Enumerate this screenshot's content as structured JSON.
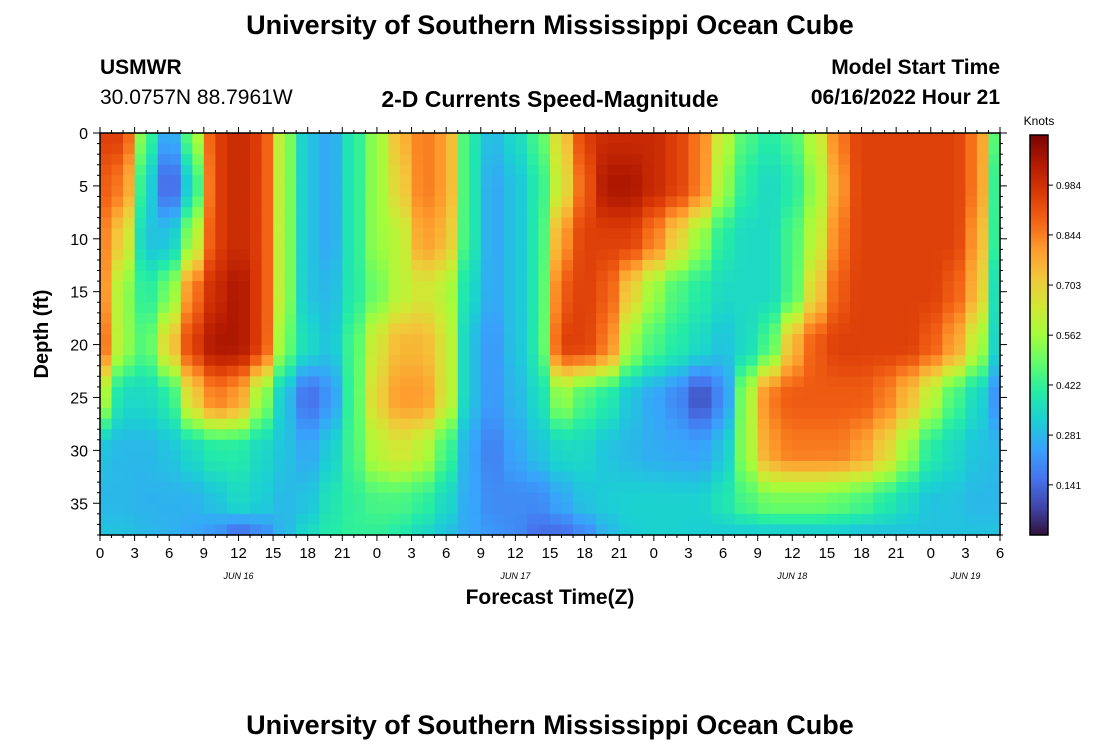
{
  "header": {
    "title": "University of Southern Mississippi Ocean Cube",
    "station": "USMWR",
    "coords": "30.0757N  88.7961W",
    "subtitle": "2-D Currents Speed-Magnitude",
    "start_label": "Model Start Time",
    "start_value": "06/16/2022 Hour 21"
  },
  "footer": {
    "title": "University of Southern Mississippi Ocean Cube"
  },
  "colors": {
    "scale": [
      "#30123b",
      "#4145ab",
      "#4675ed",
      "#39a2fc",
      "#1bcfd4",
      "#24eca6",
      "#61fc6c",
      "#a4fc3b",
      "#d1e834",
      "#f3c63a",
      "#fe9b2d",
      "#f36315",
      "#d93806",
      "#b11901",
      "#7a0403"
    ]
  },
  "chart_data": {
    "type": "heatmap",
    "title": "2-D Currents Speed-Magnitude",
    "xlabel": "Forecast Time(Z)",
    "ylabel": "Depth (ft)",
    "x_ticks": [
      "0",
      "3",
      "6",
      "9",
      "12",
      "15",
      "18",
      "21",
      "0",
      "3",
      "6",
      "9",
      "12",
      "15",
      "18",
      "21",
      "0",
      "3",
      "6",
      "9",
      "12",
      "15",
      "18",
      "21",
      "0",
      "3",
      "6"
    ],
    "x_range_hours": [
      0,
      78
    ],
    "day_labels": [
      {
        "label": "JUN 16",
        "hour": 12
      },
      {
        "label": "JUN 17",
        "hour": 36
      },
      {
        "label": "JUN 18",
        "hour": 60
      },
      {
        "label": "JUN 19",
        "hour": 75
      }
    ],
    "y_ticks": [
      0,
      5,
      10,
      15,
      20,
      25,
      30,
      35
    ],
    "y_range_ft": [
      0,
      38
    ],
    "colorbar": {
      "label": "Knots",
      "ticks": [
        "0.984",
        "0.844",
        "0.703",
        "0.562",
        "0.422",
        "0.281",
        "0.141"
      ],
      "tick_values": [
        0.984,
        0.844,
        0.703,
        0.562,
        0.422,
        0.281,
        0.141
      ],
      "range": [
        0.0,
        1.125
      ]
    },
    "grid_hours": [
      0,
      2,
      4,
      6,
      8,
      10,
      12,
      14,
      16,
      18,
      20,
      22,
      24,
      26,
      28,
      30,
      32,
      34,
      36,
      38,
      40,
      42,
      44,
      46,
      48,
      50,
      52,
      54,
      56,
      58,
      60,
      62,
      64,
      66,
      68,
      70,
      72,
      74,
      76,
      78
    ],
    "grid_depths_ft": [
      0,
      5,
      10,
      15,
      20,
      25,
      30,
      35,
      38
    ],
    "values_knots": [
      [
        0.95,
        0.95,
        0.45,
        0.22,
        0.5,
        0.95,
        1.0,
        0.95,
        0.55,
        0.3,
        0.25,
        0.4,
        0.55,
        0.75,
        0.85,
        0.8,
        0.4,
        0.28,
        0.35,
        0.45,
        0.7,
        0.95,
        1.0,
        1.0,
        1.0,
        0.95,
        0.85,
        0.6,
        0.45,
        0.4,
        0.45,
        0.6,
        0.85,
        0.95,
        0.95,
        0.95,
        0.95,
        0.95,
        0.85,
        0.4
      ],
      [
        0.9,
        0.85,
        0.35,
        0.12,
        0.35,
        0.95,
        1.0,
        0.95,
        0.55,
        0.3,
        0.25,
        0.4,
        0.55,
        0.7,
        0.85,
        0.8,
        0.4,
        0.25,
        0.3,
        0.4,
        0.65,
        0.9,
        1.05,
        1.05,
        1.0,
        0.95,
        0.85,
        0.55,
        0.4,
        0.35,
        0.4,
        0.55,
        0.8,
        0.95,
        0.95,
        0.95,
        0.95,
        0.95,
        0.85,
        0.35
      ],
      [
        0.85,
        0.7,
        0.3,
        0.3,
        0.55,
        0.95,
        1.0,
        0.95,
        0.55,
        0.3,
        0.25,
        0.4,
        0.55,
        0.6,
        0.8,
        0.75,
        0.4,
        0.25,
        0.3,
        0.4,
        0.8,
        0.95,
        0.95,
        0.95,
        0.85,
        0.7,
        0.55,
        0.4,
        0.35,
        0.35,
        0.45,
        0.6,
        0.85,
        0.95,
        0.95,
        0.95,
        0.95,
        0.95,
        0.8,
        0.35
      ],
      [
        0.85,
        0.55,
        0.4,
        0.5,
        0.85,
        1.0,
        1.05,
        0.95,
        0.55,
        0.3,
        0.28,
        0.4,
        0.5,
        0.6,
        0.65,
        0.6,
        0.35,
        0.25,
        0.3,
        0.4,
        0.9,
        0.95,
        0.9,
        0.7,
        0.55,
        0.45,
        0.4,
        0.35,
        0.35,
        0.35,
        0.45,
        0.7,
        0.9,
        0.95,
        0.95,
        0.95,
        0.95,
        0.9,
        0.75,
        0.3
      ],
      [
        0.9,
        0.55,
        0.45,
        0.7,
        0.95,
        1.05,
        1.05,
        0.95,
        0.5,
        0.35,
        0.3,
        0.45,
        0.65,
        0.75,
        0.75,
        0.65,
        0.3,
        0.22,
        0.3,
        0.4,
        0.95,
        0.95,
        0.85,
        0.55,
        0.45,
        0.4,
        0.35,
        0.3,
        0.35,
        0.45,
        0.75,
        0.9,
        0.95,
        0.95,
        0.95,
        0.95,
        0.9,
        0.8,
        0.6,
        0.3
      ],
      [
        0.6,
        0.35,
        0.35,
        0.4,
        0.7,
        0.85,
        0.8,
        0.55,
        0.3,
        0.15,
        0.22,
        0.45,
        0.7,
        0.8,
        0.8,
        0.65,
        0.3,
        0.22,
        0.28,
        0.35,
        0.55,
        0.45,
        0.4,
        0.3,
        0.25,
        0.2,
        0.1,
        0.2,
        0.55,
        0.85,
        0.9,
        0.9,
        0.9,
        0.9,
        0.85,
        0.75,
        0.6,
        0.45,
        0.35,
        0.2
      ],
      [
        0.3,
        0.28,
        0.28,
        0.3,
        0.35,
        0.4,
        0.4,
        0.35,
        0.3,
        0.25,
        0.32,
        0.45,
        0.6,
        0.65,
        0.6,
        0.45,
        0.25,
        0.18,
        0.25,
        0.3,
        0.35,
        0.35,
        0.3,
        0.28,
        0.26,
        0.25,
        0.24,
        0.3,
        0.55,
        0.8,
        0.85,
        0.85,
        0.85,
        0.8,
        0.7,
        0.55,
        0.4,
        0.35,
        0.3,
        0.28
      ],
      [
        0.28,
        0.28,
        0.27,
        0.27,
        0.27,
        0.3,
        0.35,
        0.32,
        0.28,
        0.3,
        0.38,
        0.42,
        0.45,
        0.45,
        0.42,
        0.35,
        0.25,
        0.2,
        0.2,
        0.2,
        0.25,
        0.3,
        0.32,
        0.33,
        0.33,
        0.33,
        0.33,
        0.38,
        0.45,
        0.5,
        0.5,
        0.5,
        0.48,
        0.45,
        0.4,
        0.35,
        0.3,
        0.3,
        0.28,
        0.28
      ],
      [
        0.3,
        0.3,
        0.28,
        0.27,
        0.25,
        0.22,
        0.15,
        0.2,
        0.28,
        0.35,
        0.4,
        0.42,
        0.42,
        0.4,
        0.35,
        0.3,
        0.25,
        0.22,
        0.2,
        0.15,
        0.15,
        0.2,
        0.28,
        0.32,
        0.33,
        0.33,
        0.32,
        0.32,
        0.32,
        0.32,
        0.32,
        0.32,
        0.32,
        0.3,
        0.3,
        0.3,
        0.3,
        0.3,
        0.3,
        0.3
      ]
    ]
  }
}
